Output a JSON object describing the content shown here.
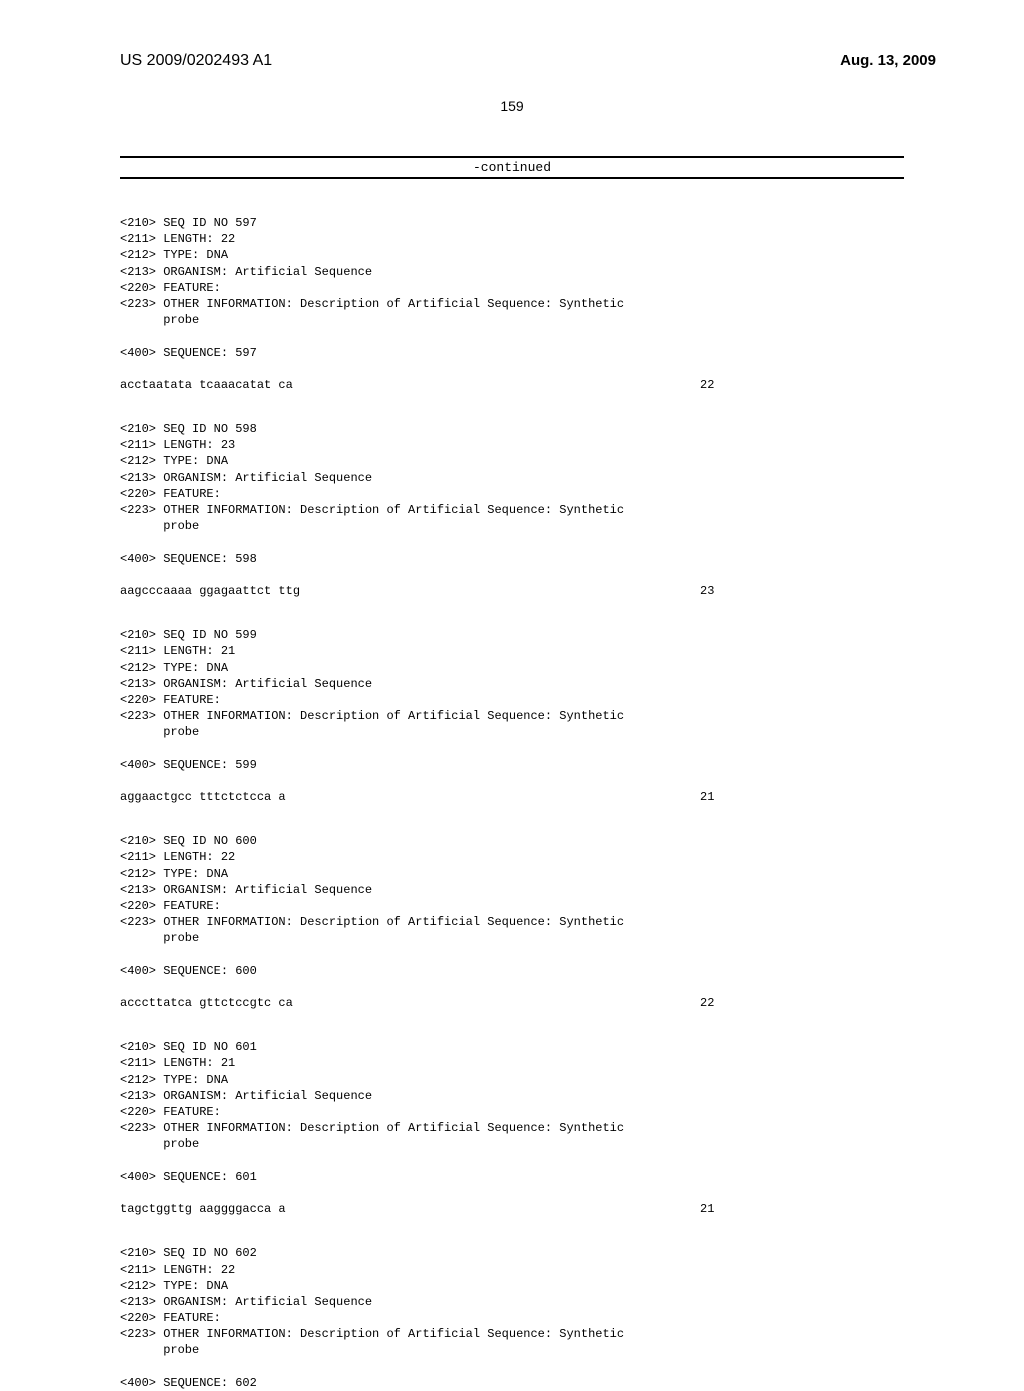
{
  "header": {
    "publication_number": "US 2009/0202493 A1",
    "publication_date": "Aug. 13, 2009"
  },
  "page_number": "159",
  "continued_label": "-continued",
  "sequences": [
    {
      "id": "597",
      "length": "22",
      "type": "DNA",
      "organism": "Artificial Sequence",
      "feature": "FEATURE:",
      "other_info": "OTHER INFORMATION: Description of Artificial Sequence: Synthetic",
      "other_info_cont": "probe",
      "sequence_label": "SEQUENCE: 597",
      "sequence_data": "acctaatata tcaaacatat ca",
      "sequence_length": "22"
    },
    {
      "id": "598",
      "length": "23",
      "type": "DNA",
      "organism": "Artificial Sequence",
      "feature": "FEATURE:",
      "other_info": "OTHER INFORMATION: Description of Artificial Sequence: Synthetic",
      "other_info_cont": "probe",
      "sequence_label": "SEQUENCE: 598",
      "sequence_data": "aagcccaaaa ggagaattct ttg",
      "sequence_length": "23"
    },
    {
      "id": "599",
      "length": "21",
      "type": "DNA",
      "organism": "Artificial Sequence",
      "feature": "FEATURE:",
      "other_info": "OTHER INFORMATION: Description of Artificial Sequence: Synthetic",
      "other_info_cont": "probe",
      "sequence_label": "SEQUENCE: 599",
      "sequence_data": "aggaactgcc tttctctcca a",
      "sequence_length": "21"
    },
    {
      "id": "600",
      "length": "22",
      "type": "DNA",
      "organism": "Artificial Sequence",
      "feature": "FEATURE:",
      "other_info": "OTHER INFORMATION: Description of Artificial Sequence: Synthetic",
      "other_info_cont": "probe",
      "sequence_label": "SEQUENCE: 600",
      "sequence_data": "acccttatca gttctccgtc ca",
      "sequence_length": "22"
    },
    {
      "id": "601",
      "length": "21",
      "type": "DNA",
      "organism": "Artificial Sequence",
      "feature": "FEATURE:",
      "other_info": "OTHER INFORMATION: Description of Artificial Sequence: Synthetic",
      "other_info_cont": "probe",
      "sequence_label": "SEQUENCE: 601",
      "sequence_data": "tagctggttg aaggggacca a",
      "sequence_length": "21"
    },
    {
      "id": "602",
      "length": "22",
      "type": "DNA",
      "organism": "Artificial Sequence",
      "feature": "FEATURE:",
      "other_info": "OTHER INFORMATION: Description of Artificial Sequence: Synthetic",
      "other_info_cont": "probe",
      "sequence_label": "SEQUENCE: 602",
      "sequence_data": "",
      "sequence_length": ""
    }
  ],
  "field_labels": {
    "seq_id_prefix": "<210> SEQ ID NO ",
    "length_prefix": "<211> LENGTH: ",
    "type_prefix": "<212> TYPE: ",
    "organism_prefix": "<213> ORGANISM: ",
    "feature_prefix": "<220> ",
    "other_info_prefix": "<223> ",
    "sequence_prefix": "<400> "
  }
}
